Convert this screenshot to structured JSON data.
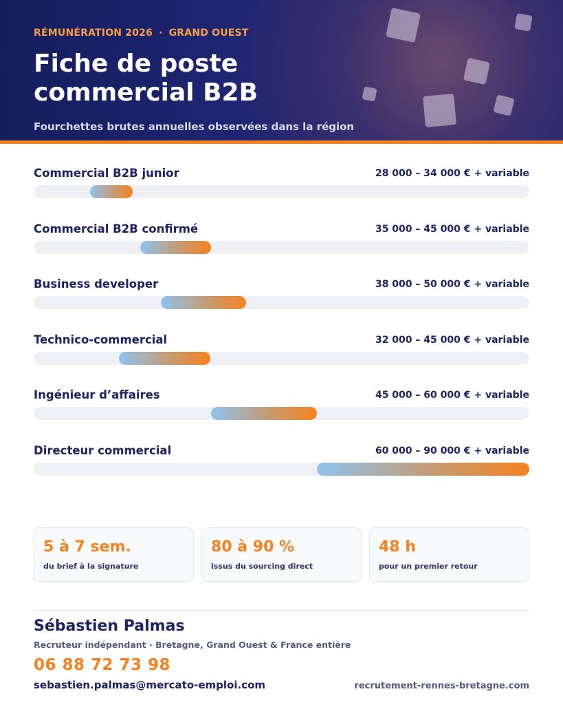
{
  "header": {
    "eyebrow_left": "RÉMUNÉRATION 2026",
    "eyebrow_sep": "·",
    "eyebrow_right": "GRAND OUEST",
    "title_line1": "Fiche de poste",
    "title_line2": "commercial B2B",
    "subtitle": "Fourchettes brutes annuelles observées dans la région"
  },
  "scale": {
    "min": 20000,
    "max": 90000,
    "unit": "€"
  },
  "roles": [
    {
      "label": "Commercial B2B junior",
      "range": "28 000 – 34 000 € + variable",
      "min": 28000,
      "max": 34000
    },
    {
      "label": "Commercial B2B confirmé",
      "range": "35 000 – 45 000 € + variable",
      "min": 35000,
      "max": 45000
    },
    {
      "label": "Business developer",
      "range": "38 000 – 50 000 € + variable",
      "min": 38000,
      "max": 50000
    },
    {
      "label": "Technico-commercial",
      "range": "32 000 – 45 000 € + variable",
      "min": 32000,
      "max": 45000
    },
    {
      "label": "Ingénieur d’affaires",
      "range": "45 000 – 60 000 € + variable",
      "min": 45000,
      "max": 60000
    },
    {
      "label": "Directeur commercial",
      "range": "60 000 – 90 000 € + variable",
      "min": 60000,
      "max": 90000
    }
  ],
  "stats": [
    {
      "value": "5 à 7 sem.",
      "label": "du brief à la signature"
    },
    {
      "value": "80 à 90 %",
      "label": "issus du sourcing direct"
    },
    {
      "value": "48 h",
      "label": "pour un premier retour"
    }
  ],
  "contact": {
    "name": "Sébastien Palmas",
    "role": "Recruteur indépendant · Bretagne, Grand Ouest & France entière",
    "phone": "06 88 72 73 98",
    "email": "sebastien.palmas@mercato-emploi.com",
    "website": "recrutement-rennes-bretagne.com"
  },
  "colors": {
    "navy": "#1b2461",
    "accent_orange": "#f5821f",
    "bar_start": "#8ec3ef",
    "track": "#eef0f6"
  }
}
